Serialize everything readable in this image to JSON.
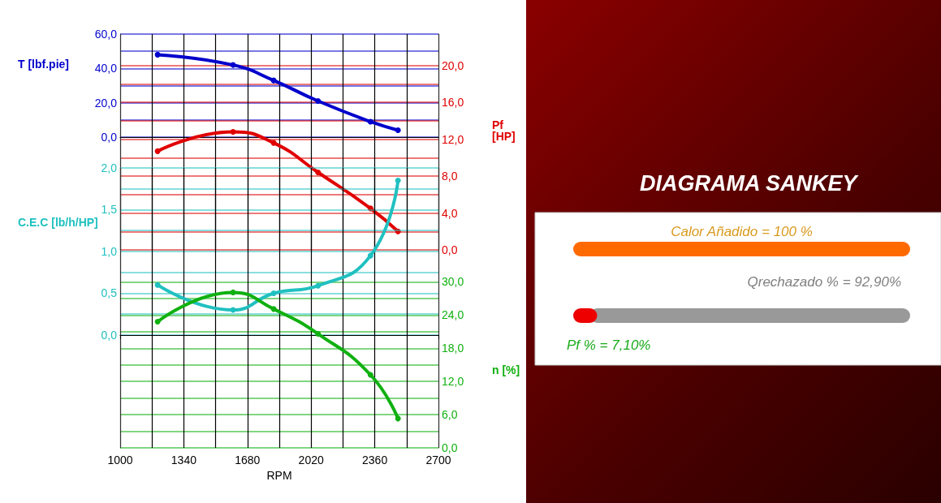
{
  "chart_data": [
    {
      "type": "line",
      "ylabel": "T [lbf.pie]",
      "y2label": "Pf [HP]",
      "x": [
        1200,
        1603,
        1820,
        2057,
        2337,
        2484
      ],
      "series": [
        {
          "color": "#0000cc",
          "values": [
            48,
            42,
            33,
            21,
            9,
            4
          ]
        },
        {
          "color": "#e00000",
          "axis": "y2",
          "values": [
            10.7,
            12.8,
            11.6,
            8.4,
            4.5,
            2.0
          ]
        }
      ],
      "xlim": [
        1000,
        2700
      ],
      "xticks": [
        1000,
        {
          "value": 1170,
          "label": null
        },
        1340,
        {
          "value": 1510,
          "label": null
        },
        1680,
        {
          "value": 1850,
          "label": null
        },
        2020,
        {
          "value": 2190,
          "label": null
        },
        2360,
        {
          "value": 2530,
          "label": null
        },
        2700
      ],
      "ylim": [
        -65.7,
        60
      ],
      "yticks": [
        {
          "value": 0,
          "label": "0,0"
        },
        {
          "value": 10,
          "label": null
        },
        {
          "value": 20,
          "label": "20,0"
        },
        {
          "value": 30,
          "label": null
        },
        {
          "value": 40,
          "label": "40,0"
        },
        {
          "value": 50,
          "label": null
        },
        {
          "value": 60,
          "label": "60,0"
        }
      ],
      "y2lim": [
        0,
        23.4
      ],
      "y2ticks": [
        {
          "value": 0,
          "label": "0,0"
        },
        {
          "value": 2,
          "label": null
        },
        {
          "value": 4,
          "label": "4,0"
        },
        {
          "value": 6,
          "label": null
        },
        {
          "value": 8,
          "label": "8,0"
        },
        {
          "value": 10,
          "label": null
        },
        {
          "value": 12,
          "label": "12,0"
        },
        {
          "value": 14,
          "label": null
        },
        {
          "value": 16,
          "label": "16,0"
        },
        {
          "value": 18,
          "label": null
        },
        {
          "value": 20,
          "label": "20,0"
        }
      ],
      "tick_labels": "y",
      "grid": true,
      "marker": "circle",
      "line_style": "solid"
    },
    {
      "type": "line",
      "xlabel": "RPM",
      "ylabel": "C.E.C [lb/h/HP]",
      "y2label": "n [%]",
      "x": [
        1200,
        1603,
        1820,
        2057,
        2337,
        2484
      ],
      "series": [
        {
          "color": "#20c0c0",
          "values": [
            0.6,
            0.3,
            0.5,
            0.59,
            0.95,
            1.85
          ]
        },
        {
          "color": "#10b010",
          "axis": "y2",
          "values": [
            22.8,
            28.1,
            25.1,
            20.6,
            13.2,
            5.3
          ]
        }
      ],
      "xlim": [
        1000,
        2700
      ],
      "xticks": [
        1000,
        {
          "value": 1170,
          "label": null
        },
        1340,
        {
          "value": 1510,
          "label": null
        },
        1680,
        {
          "value": 1850,
          "label": null
        },
        2020,
        {
          "value": 2190,
          "label": null
        },
        2360,
        {
          "value": 2530,
          "label": null
        },
        2700
      ],
      "ylim": [
        -1.35,
        2
      ],
      "yticks": [
        {
          "value": 0,
          "label": "0,0"
        },
        {
          "value": 0.25,
          "label": null
        },
        {
          "value": 0.5,
          "label": "0,5"
        },
        {
          "value": 0.75,
          "label": null
        },
        {
          "value": 1,
          "label": "1,0"
        },
        {
          "value": 1.25,
          "label": null
        },
        {
          "value": 1.5,
          "label": "1,5"
        },
        {
          "value": 1.75,
          "label": null
        },
        {
          "value": 2,
          "label": "2,0"
        }
      ],
      "y2lim": [
        0,
        50.6
      ],
      "y2ticks": [
        {
          "value": 0,
          "label": "0,0"
        },
        {
          "value": 3,
          "label": null
        },
        {
          "value": 6,
          "label": "6,0"
        },
        {
          "value": 9,
          "label": null
        },
        {
          "value": 12,
          "label": "12,0"
        },
        {
          "value": 15,
          "label": null
        },
        {
          "value": 18,
          "label": "18,0"
        },
        {
          "value": 21,
          "label": null
        },
        {
          "value": 24,
          "label": "24,0"
        },
        {
          "value": 27,
          "label": null
        },
        {
          "value": 30,
          "label": "30,0"
        }
      ],
      "grid": true,
      "marker": "circle",
      "line_style": "solid"
    },
    {
      "type": "other",
      "title": "DIAGRAMA SANKEY",
      "categories": [
        null,
        null,
        null
      ],
      "values": [
        100,
        92.9,
        7.1
      ],
      "colors": [
        "#ff6a00",
        "#999999",
        "#ee0000"
      ],
      "value_labels": [
        "Calor Añadido = 100 %",
        "Qrechazado % = 92,90%",
        "Pf % = 7,10%"
      ]
    }
  ]
}
